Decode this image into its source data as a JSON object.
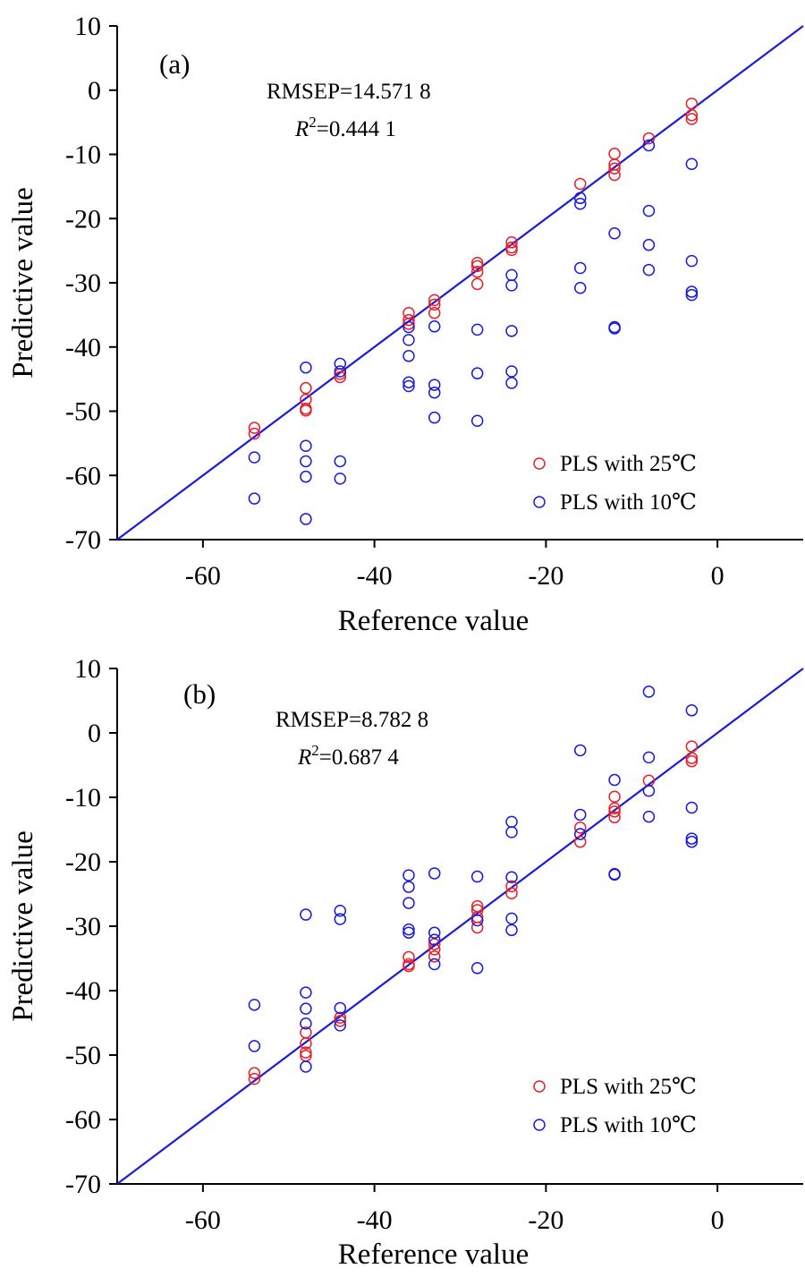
{
  "chart_data": [
    {
      "type": "scatter",
      "panel_label": "(a)",
      "xlabel": "Reference value",
      "ylabel": "Predictive value",
      "xlim": [
        -70,
        10
      ],
      "ylim": [
        -70,
        10
      ],
      "x_ticks": [
        -60,
        -40,
        -20,
        0
      ],
      "y_ticks": [
        10,
        0,
        -10,
        -20,
        -30,
        -40,
        -50,
        -60,
        -70
      ],
      "annotations": {
        "rmsep": "RMSEP=14.571 8",
        "r2_symbol": "R",
        "r2_sup": "2",
        "r2_value": "=0.444 1"
      },
      "reference_line": {
        "from": [
          -70,
          -70
        ],
        "to": [
          10,
          10
        ],
        "color": "#1a1adf"
      },
      "legend_position": "bottom-right",
      "series": [
        {
          "name": "PLS with 25℃",
          "color": "#e8202a",
          "marker": "open-circle",
          "points": [
            [
              -54.0,
              -52.6
            ],
            [
              -54.0,
              -53.5
            ],
            [
              -48.0,
              -46.4
            ],
            [
              -48.0,
              -48.2
            ],
            [
              -48.0,
              -49.6
            ],
            [
              -48.0,
              -49.9
            ],
            [
              -44.0,
              -44.2
            ],
            [
              -44.0,
              -44.7
            ],
            [
              -36.0,
              -34.7
            ],
            [
              -36.0,
              -35.8
            ],
            [
              -36.0,
              -36.4
            ],
            [
              -33.0,
              -32.7
            ],
            [
              -33.0,
              -33.4
            ],
            [
              -33.0,
              -34.7
            ],
            [
              -28.0,
              -26.9
            ],
            [
              -28.0,
              -27.4
            ],
            [
              -28.0,
              -28.3
            ],
            [
              -28.0,
              -30.2
            ],
            [
              -24.0,
              -23.7
            ],
            [
              -24.0,
              -24.5
            ],
            [
              -24.0,
              -24.9
            ],
            [
              -16.0,
              -14.6
            ],
            [
              -12.0,
              -9.9
            ],
            [
              -12.0,
              -11.6
            ],
            [
              -12.0,
              -12.2
            ],
            [
              -12.0,
              -13.2
            ],
            [
              -8.0,
              -7.5
            ],
            [
              -3.0,
              -2.1
            ],
            [
              -3.0,
              -3.9
            ],
            [
              -3.0,
              -4.5
            ]
          ]
        },
        {
          "name": "PLS with 10℃",
          "color": "#1a1adf",
          "marker": "open-circle",
          "points": [
            [
              -54.0,
              -57.2
            ],
            [
              -54.0,
              -63.6
            ],
            [
              -48.0,
              -43.2
            ],
            [
              -48.0,
              -55.4
            ],
            [
              -48.0,
              -57.8
            ],
            [
              -48.0,
              -60.2
            ],
            [
              -48.0,
              -66.8
            ],
            [
              -44.0,
              -42.6
            ],
            [
              -44.0,
              -43.8
            ],
            [
              -44.0,
              -57.8
            ],
            [
              -44.0,
              -60.5
            ],
            [
              -36.0,
              -36.9
            ],
            [
              -36.0,
              -38.9
            ],
            [
              -36.0,
              -41.4
            ],
            [
              -36.0,
              -45.5
            ],
            [
              -36.0,
              -46.1
            ],
            [
              -33.0,
              -36.8
            ],
            [
              -33.0,
              -45.9
            ],
            [
              -33.0,
              -47.1
            ],
            [
              -33.0,
              -51.0
            ],
            [
              -28.0,
              -37.3
            ],
            [
              -28.0,
              -44.1
            ],
            [
              -28.0,
              -51.5
            ],
            [
              -24.0,
              -28.8
            ],
            [
              -24.0,
              -30.4
            ],
            [
              -24.0,
              -37.5
            ],
            [
              -24.0,
              -43.8
            ],
            [
              -24.0,
              -45.6
            ],
            [
              -16.0,
              -16.8
            ],
            [
              -16.0,
              -17.7
            ],
            [
              -16.0,
              -27.7
            ],
            [
              -16.0,
              -30.8
            ],
            [
              -12.0,
              -22.3
            ],
            [
              -12.0,
              -36.9
            ],
            [
              -12.0,
              -37.1
            ],
            [
              -8.0,
              -8.6
            ],
            [
              -8.0,
              -18.8
            ],
            [
              -8.0,
              -24.1
            ],
            [
              -8.0,
              -28.0
            ],
            [
              -3.0,
              -11.5
            ],
            [
              -3.0,
              -26.6
            ],
            [
              -3.0,
              -31.4
            ],
            [
              -3.0,
              -31.9
            ]
          ]
        }
      ]
    },
    {
      "type": "scatter",
      "panel_label": "(b)",
      "xlabel": "Reference value",
      "ylabel": "Predictive value",
      "xlim": [
        -70,
        10
      ],
      "ylim": [
        -70,
        10
      ],
      "x_ticks": [
        -60,
        -40,
        -20,
        0
      ],
      "y_ticks": [
        10,
        0,
        -10,
        -20,
        -30,
        -40,
        -50,
        -60,
        -70
      ],
      "annotations": {
        "rmsep": "RMSEP=8.782 8",
        "r2_symbol": "R",
        "r2_sup": "2",
        "r2_value": "=0.687 4"
      },
      "reference_line": {
        "from": [
          -70,
          -70
        ],
        "to": [
          10,
          10
        ],
        "color": "#1a1adf"
      },
      "legend_position": "bottom-right",
      "series": [
        {
          "name": "PLS with 25℃",
          "color": "#e8202a",
          "marker": "open-circle",
          "points": [
            [
              -54.0,
              -52.8
            ],
            [
              -54.0,
              -53.7
            ],
            [
              -48.0,
              -46.5
            ],
            [
              -48.0,
              -48.2
            ],
            [
              -48.0,
              -49.6
            ],
            [
              -48.0,
              -50.1
            ],
            [
              -44.0,
              -44.2
            ],
            [
              -44.0,
              -44.7
            ],
            [
              -36.0,
              -34.8
            ],
            [
              -36.0,
              -35.9
            ],
            [
              -36.0,
              -36.2
            ],
            [
              -33.0,
              -32.8
            ],
            [
              -33.0,
              -33.6
            ],
            [
              -33.0,
              -34.7
            ],
            [
              -28.0,
              -26.9
            ],
            [
              -28.0,
              -27.5
            ],
            [
              -28.0,
              -28.6
            ],
            [
              -28.0,
              -30.2
            ],
            [
              -24.0,
              -23.8
            ],
            [
              -24.0,
              -24.9
            ],
            [
              -16.0,
              -14.7
            ],
            [
              -16.0,
              -16.9
            ],
            [
              -12.0,
              -9.9
            ],
            [
              -12.0,
              -11.7
            ],
            [
              -12.0,
              -12.2
            ],
            [
              -12.0,
              -13.1
            ],
            [
              -8.0,
              -7.4
            ],
            [
              -3.0,
              -2.1
            ],
            [
              -3.0,
              -3.9
            ],
            [
              -3.0,
              -4.4
            ]
          ]
        },
        {
          "name": "PLS with 10℃",
          "color": "#1a1adf",
          "marker": "open-circle",
          "points": [
            [
              -54.0,
              -42.2
            ],
            [
              -54.0,
              -48.6
            ],
            [
              -48.0,
              -28.2
            ],
            [
              -48.0,
              -40.3
            ],
            [
              -48.0,
              -42.8
            ],
            [
              -48.0,
              -45.1
            ],
            [
              -48.0,
              -51.8
            ],
            [
              -44.0,
              -27.6
            ],
            [
              -44.0,
              -28.9
            ],
            [
              -44.0,
              -42.7
            ],
            [
              -44.0,
              -45.4
            ],
            [
              -36.0,
              -22.1
            ],
            [
              -36.0,
              -23.9
            ],
            [
              -36.0,
              -26.4
            ],
            [
              -36.0,
              -30.5
            ],
            [
              -36.0,
              -31.0
            ],
            [
              -33.0,
              -21.8
            ],
            [
              -33.0,
              -31.0
            ],
            [
              -33.0,
              -32.1
            ],
            [
              -33.0,
              -35.9
            ],
            [
              -28.0,
              -22.3
            ],
            [
              -28.0,
              -29.1
            ],
            [
              -28.0,
              -36.5
            ],
            [
              -24.0,
              -13.8
            ],
            [
              -24.0,
              -15.4
            ],
            [
              -24.0,
              -22.4
            ],
            [
              -24.0,
              -28.8
            ],
            [
              -24.0,
              -30.6
            ],
            [
              -16.0,
              -2.7
            ],
            [
              -16.0,
              -12.7
            ],
            [
              -16.0,
              -15.7
            ],
            [
              -12.0,
              -7.3
            ],
            [
              -12.0,
              -21.9
            ],
            [
              -12.0,
              -22.0
            ],
            [
              -8.0,
              6.4
            ],
            [
              -8.0,
              -3.8
            ],
            [
              -8.0,
              -9.0
            ],
            [
              -8.0,
              -13.0
            ],
            [
              -3.0,
              3.5
            ],
            [
              -3.0,
              -11.6
            ],
            [
              -3.0,
              -16.4
            ],
            [
              -3.0,
              -16.9
            ]
          ]
        }
      ]
    }
  ]
}
